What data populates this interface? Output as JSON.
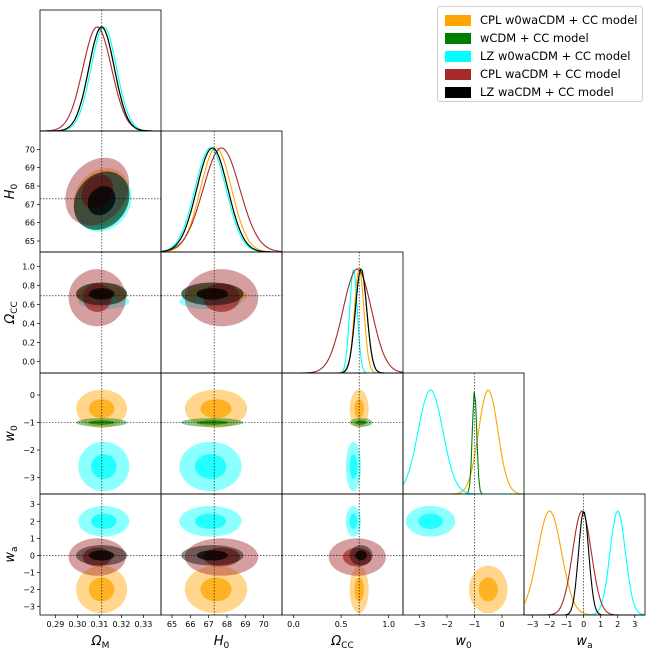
{
  "chart_data": {
    "type": "corner",
    "parameters": [
      {
        "key": "om",
        "label": "Ω",
        "sub": "M",
        "range": [
          0.283,
          0.338
        ],
        "ticks": [
          0.29,
          0.3,
          0.31,
          0.32,
          0.33
        ],
        "tick_labels": [
          "0.29",
          "0.30",
          "0.31",
          "0.32",
          "0.33"
        ],
        "fiducial": 0.3111
      },
      {
        "key": "h0",
        "label": "H",
        "sub": "0",
        "range": [
          64.4,
          71.0
        ],
        "ticks": [
          65,
          66,
          67,
          68,
          69,
          70
        ],
        "tick_labels": [
          "65",
          "66",
          "67",
          "68",
          "69",
          "70"
        ],
        "tick_labels_x": [
          "65",
          "66",
          "67",
          "68",
          "69",
          "70"
        ],
        "fiducial": 67.3
      },
      {
        "key": "occ",
        "label": "Ω",
        "sub": "CC",
        "range": [
          -0.12,
          1.15
        ],
        "ticks": [
          0.0,
          0.2,
          0.4,
          0.6,
          0.8,
          1.0
        ],
        "tick_labels": [
          "0.0",
          "0.2",
          "0.4",
          "0.6",
          "0.8",
          "1.0"
        ],
        "tick_labels_x": [
          "0.0",
          "0.5",
          "1.0"
        ],
        "ticks_x": [
          0.0,
          0.5,
          1.0
        ],
        "fiducial": 0.69
      },
      {
        "key": "w0",
        "label": "w",
        "sub": "0",
        "range": [
          -3.6,
          0.8
        ],
        "ticks": [
          -3,
          -2,
          -1,
          0
        ],
        "tick_labels": [
          "−3",
          "−2",
          "−1",
          "0"
        ],
        "tick_labels_x": [
          "−3",
          "−2",
          "−1",
          "0"
        ],
        "fiducial": -1.0
      },
      {
        "key": "wa",
        "label": "w",
        "sub": "a",
        "range": [
          -3.5,
          3.6
        ],
        "ticks": [
          -3,
          -2,
          -1,
          0,
          1,
          2,
          3
        ],
        "tick_labels": [
          "−3",
          "−2",
          "−1",
          "0",
          "1",
          "2",
          "3"
        ],
        "tick_labels_x": [
          "−3",
          "−2",
          "−1",
          "0",
          "1",
          "2",
          "3"
        ],
        "fiducial": 0.0
      }
    ],
    "series": [
      {
        "name": "CPL w0waCDM + CC model",
        "color": "#ffa500",
        "params": [
          "om",
          "h0",
          "occ",
          "w0",
          "wa"
        ],
        "mean": {
          "om": 0.311,
          "h0": 67.4,
          "occ": 0.69,
          "w0": -0.5,
          "wa": -2.0
        },
        "sd": {
          "om": 0.0058,
          "h0": 0.85,
          "occ": 0.05,
          "w0": 0.35,
          "wa": 0.7
        }
      },
      {
        "name": "wCDM + CC model",
        "color": "#008000",
        "params": [
          "om",
          "h0",
          "occ",
          "w0"
        ],
        "mean": {
          "om": 0.311,
          "h0": 67.2,
          "occ": 0.71,
          "w0": -1.0
        },
        "sd": {
          "om": 0.0058,
          "h0": 0.85,
          "occ": 0.06,
          "w0": 0.08
        }
      },
      {
        "name": "LZ w0waCDM + CC model",
        "color": "#00ffff",
        "params": [
          "om",
          "h0",
          "occ",
          "w0",
          "wa"
        ],
        "mean": {
          "om": 0.312,
          "h0": 67.1,
          "occ": 0.63,
          "w0": -2.6,
          "wa": 2.0
        },
        "sd": {
          "om": 0.0058,
          "h0": 0.85,
          "occ": 0.04,
          "w0": 0.45,
          "wa": 0.45
        }
      },
      {
        "name": "CPL waCDM + CC model",
        "color": "#a52a2a",
        "params": [
          "om",
          "h0",
          "occ",
          "wa"
        ],
        "mean": {
          "om": 0.309,
          "h0": 67.7,
          "occ": 0.67,
          "wa": -0.1
        },
        "sd": {
          "om": 0.0065,
          "h0": 1.0,
          "occ": 0.15,
          "wa": 0.55
        }
      },
      {
        "name": "LZ waCDM + CC model",
        "color": "#000000",
        "params": [
          "om",
          "h0",
          "occ",
          "wa"
        ],
        "mean": {
          "om": 0.311,
          "h0": 67.2,
          "occ": 0.71,
          "wa": 0.0
        },
        "sd": {
          "om": 0.0058,
          "h0": 0.85,
          "occ": 0.06,
          "wa": 0.3
        }
      }
    ],
    "legend_position": "top-right",
    "grid": false
  }
}
